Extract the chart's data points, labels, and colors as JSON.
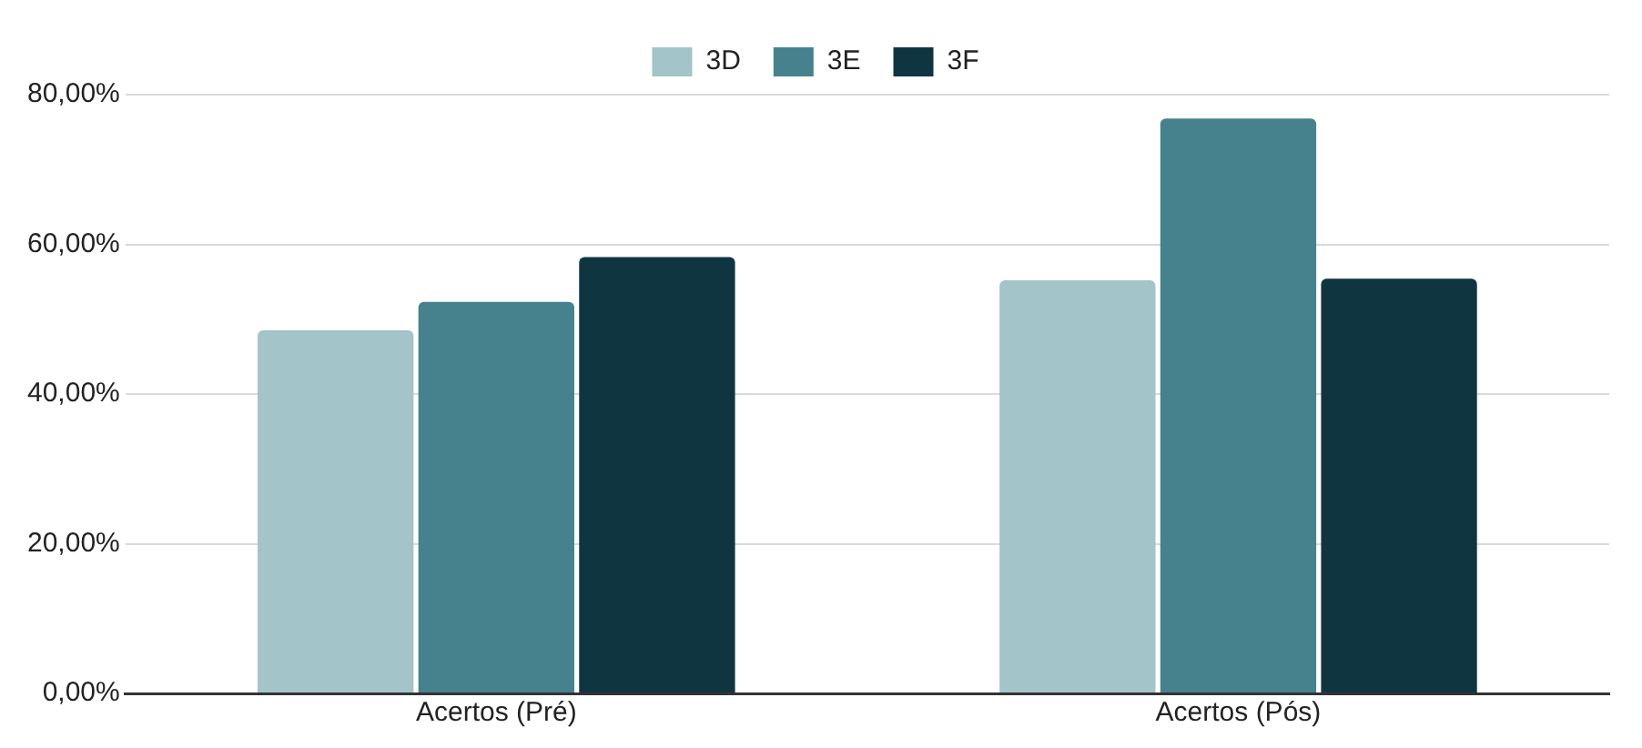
{
  "chart_data": {
    "type": "bar",
    "categories": [
      "Acertos (Pré)",
      "Acertos (Pós)"
    ],
    "series": [
      {
        "name": "3D",
        "color": "#a3c4c8",
        "values": [
          48.5,
          55.2
        ]
      },
      {
        "name": "3E",
        "color": "#46818e",
        "values": [
          52.3,
          76.8
        ]
      },
      {
        "name": "3F",
        "color": "#0f3640",
        "values": [
          58.3,
          55.4
        ]
      }
    ],
    "ylim": [
      0,
      80
    ],
    "yticks": [
      {
        "value": 0,
        "label": "0,00%"
      },
      {
        "value": 20,
        "label": "20,00%"
      },
      {
        "value": 40,
        "label": "40,00%"
      },
      {
        "value": 60,
        "label": "60,00%"
      },
      {
        "value": 80,
        "label": "80,00%"
      }
    ],
    "grid": "y",
    "legend": "top"
  }
}
